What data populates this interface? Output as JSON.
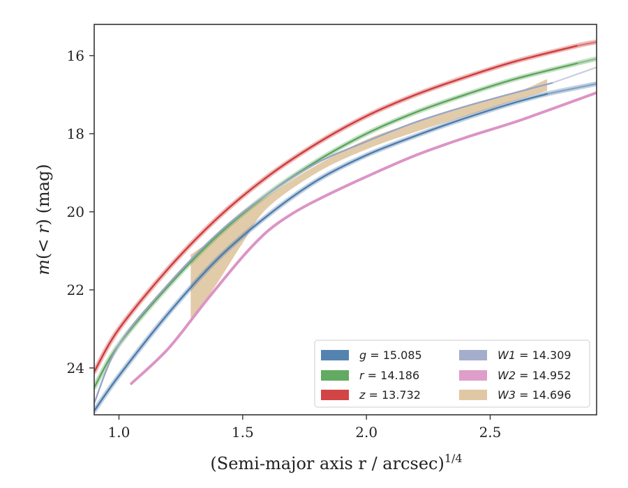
{
  "chart_data": {
    "type": "line",
    "xlabel": "(Semi-major axis r / arcsec)",
    "xlabel_sup": "1/4",
    "ylabel": "m(< r) (mag)",
    "xlim": [
      0.9,
      2.93
    ],
    "ylim": [
      25.2,
      15.2
    ],
    "y_inverted": true,
    "x_ticks": [
      1.0,
      1.5,
      2.0,
      2.5
    ],
    "x_tick_labels": [
      "1.0",
      "1.5",
      "2.0",
      "2.5"
    ],
    "y_ticks": [
      16,
      18,
      20,
      22,
      24
    ],
    "y_tick_labels": [
      "16",
      "18",
      "20",
      "22",
      "24"
    ],
    "grid": false,
    "legend_placement": "lower-right",
    "series": [
      {
        "name": "g = 15.085",
        "band": "g",
        "value": "15.085",
        "color": "#4c7cab",
        "x": [
          0.9,
          1.0,
          1.2,
          1.4,
          1.6,
          1.8,
          2.0,
          2.2,
          2.4,
          2.6,
          2.73,
          2.93
        ],
        "y": [
          25.1,
          24.2,
          22.6,
          21.2,
          20.1,
          19.2,
          18.55,
          18.05,
          17.6,
          17.2,
          16.98,
          16.72
        ],
        "solid_until_x": 2.73,
        "halo": true
      },
      {
        "name": "r = 14.186",
        "band": "r",
        "value": "14.186",
        "color": "#5ba55b",
        "x": [
          0.9,
          1.0,
          1.2,
          1.4,
          1.6,
          1.8,
          2.0,
          2.2,
          2.4,
          2.6,
          2.85,
          2.93
        ],
        "y": [
          24.5,
          23.4,
          21.9,
          20.6,
          19.55,
          18.7,
          18.0,
          17.45,
          17.0,
          16.6,
          16.2,
          16.08
        ],
        "solid_until_x": 2.85,
        "halo": true
      },
      {
        "name": "z = 13.732",
        "band": "z",
        "value": "13.732",
        "color": "#cf3b3b",
        "x": [
          0.9,
          1.0,
          1.2,
          1.4,
          1.6,
          1.8,
          2.0,
          2.2,
          2.4,
          2.6,
          2.85,
          2.93
        ],
        "y": [
          24.1,
          23.0,
          21.45,
          20.15,
          19.1,
          18.25,
          17.55,
          17.0,
          16.55,
          16.15,
          15.75,
          15.65
        ],
        "solid_until_x": 2.85,
        "halo": true
      },
      {
        "name": "W1 = 14.309",
        "band": "W1",
        "value": "14.309",
        "color": "#9aa5c6",
        "x": [
          0.9,
          1.0,
          1.2,
          1.4,
          1.6,
          1.8,
          2.0,
          2.2,
          2.4,
          2.6,
          2.75,
          2.93
        ],
        "y": [
          24.9,
          23.4,
          21.85,
          20.55,
          19.55,
          18.75,
          18.2,
          17.7,
          17.3,
          16.95,
          16.7,
          16.3
        ],
        "solid_until_x": 2.75,
        "halo": false
      },
      {
        "name": "W2 = 14.952",
        "band": "W2",
        "value": "14.952",
        "color": "#dc94c4",
        "x": [
          1.05,
          1.2,
          1.35,
          1.5,
          1.6,
          1.7,
          1.8,
          2.0,
          2.2,
          2.4,
          2.6,
          2.8,
          2.93
        ],
        "y": [
          24.4,
          23.5,
          22.3,
          21.15,
          20.5,
          20.05,
          19.7,
          19.1,
          18.55,
          18.1,
          17.7,
          17.25,
          16.95
        ],
        "solid_until_x": 2.93,
        "halo": false
      },
      {
        "name": "W3 = 14.696",
        "band": "W3",
        "value": "14.696",
        "color": "#ddc29a",
        "type": "band",
        "x": [
          1.29,
          1.4,
          1.5,
          1.6,
          1.8,
          2.0,
          2.2,
          2.4,
          2.6,
          2.73
        ],
        "y_low": [
          21.1,
          20.6,
          20.05,
          19.6,
          18.8,
          18.15,
          17.7,
          17.3,
          16.95,
          16.6
        ],
        "y_high": [
          22.85,
          21.8,
          20.8,
          19.9,
          19.0,
          18.4,
          17.95,
          17.55,
          17.15,
          16.9
        ]
      }
    ]
  },
  "legend": {
    "items": [
      {
        "band": "g",
        "value": "15.085",
        "color": "#4c7cab"
      },
      {
        "band": "r",
        "value": "14.186",
        "color": "#5ba55b"
      },
      {
        "band": "z",
        "value": "13.732",
        "color": "#cf3b3b"
      },
      {
        "band": "W1",
        "value": "14.309",
        "color": "#9aa5c6"
      },
      {
        "band": "W2",
        "value": "14.952",
        "color": "#dc94c4"
      },
      {
        "band": "W3",
        "value": "14.696",
        "color": "#ddc29a"
      }
    ]
  }
}
